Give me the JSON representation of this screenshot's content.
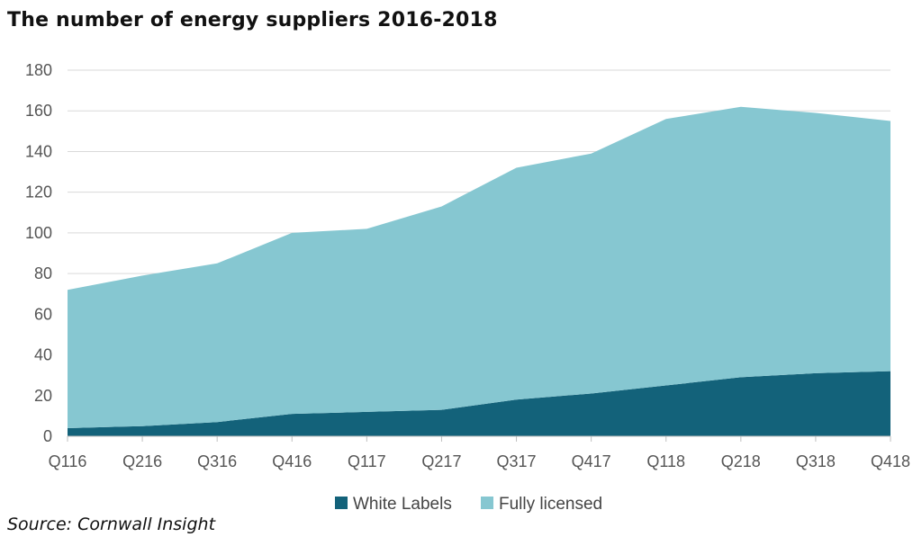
{
  "title": "The number of energy suppliers 2016-2018",
  "source": "Source: Cornwall Insight",
  "chart_data": {
    "type": "area",
    "stacked": true,
    "categories": [
      "Q116",
      "Q216",
      "Q316",
      "Q416",
      "Q117",
      "Q217",
      "Q317",
      "Q417",
      "Q118",
      "Q218",
      "Q318",
      "Q418"
    ],
    "series": [
      {
        "name": "White Labels",
        "color": "#13627a",
        "values": [
          4,
          5,
          7,
          11,
          12,
          13,
          18,
          21,
          25,
          29,
          31,
          32
        ]
      },
      {
        "name": "Fully licensed",
        "color": "#86c7d1",
        "values": [
          68,
          74,
          78,
          89,
          90,
          100,
          114,
          118,
          131,
          133,
          128,
          123
        ]
      }
    ],
    "ylim": [
      0,
      180
    ],
    "yticks": [
      0,
      20,
      40,
      60,
      80,
      100,
      120,
      140,
      160,
      180
    ],
    "grid": true,
    "legend_position": "bottom",
    "xlabel": "",
    "ylabel": ""
  }
}
